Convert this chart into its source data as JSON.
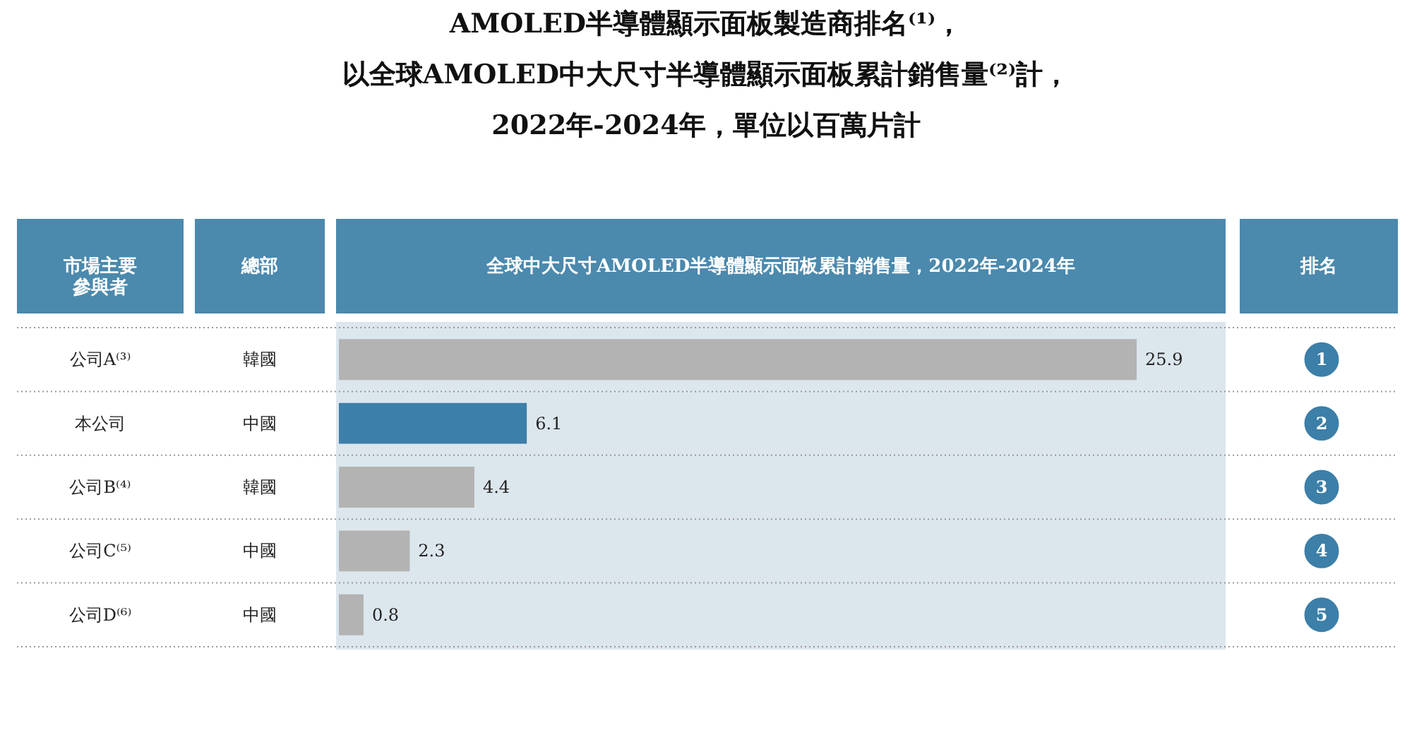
{
  "chart_data": {
    "type": "bar",
    "orientation": "horizontal",
    "data_labels": true,
    "title": "AMOLED半導體顯示面板製造商排名⁽¹⁾，以全球AMOLED中大尺寸半導體顯示面板累計銷售量⁽²⁾計，",
    "subtitle": "2022年-2024年，單位以百萬片計",
    "categories": [
      "公司A⁽³⁾",
      "本公司",
      "公司B⁽⁴⁾",
      "公司C⁽⁵⁾",
      "公司D⁽⁶⁾"
    ],
    "values": [
      25.9,
      6.1,
      4.4,
      2.3,
      0.8
    ],
    "colors": [
      "#b3b3b3",
      "#3c7fa8",
      "#b3b3b3",
      "#b3b3b3",
      "#b3b3b3"
    ],
    "annotations": [
      "市場主要參與者",
      "總部",
      "全球中大尺寸AMOLED半導體顯示面板累計銷售量，2022年-2024年",
      "排名",
      "韓國",
      "中國",
      "韓國",
      "中國",
      "中國",
      "1",
      "2",
      "3",
      "4",
      "5"
    ]
  }
}
